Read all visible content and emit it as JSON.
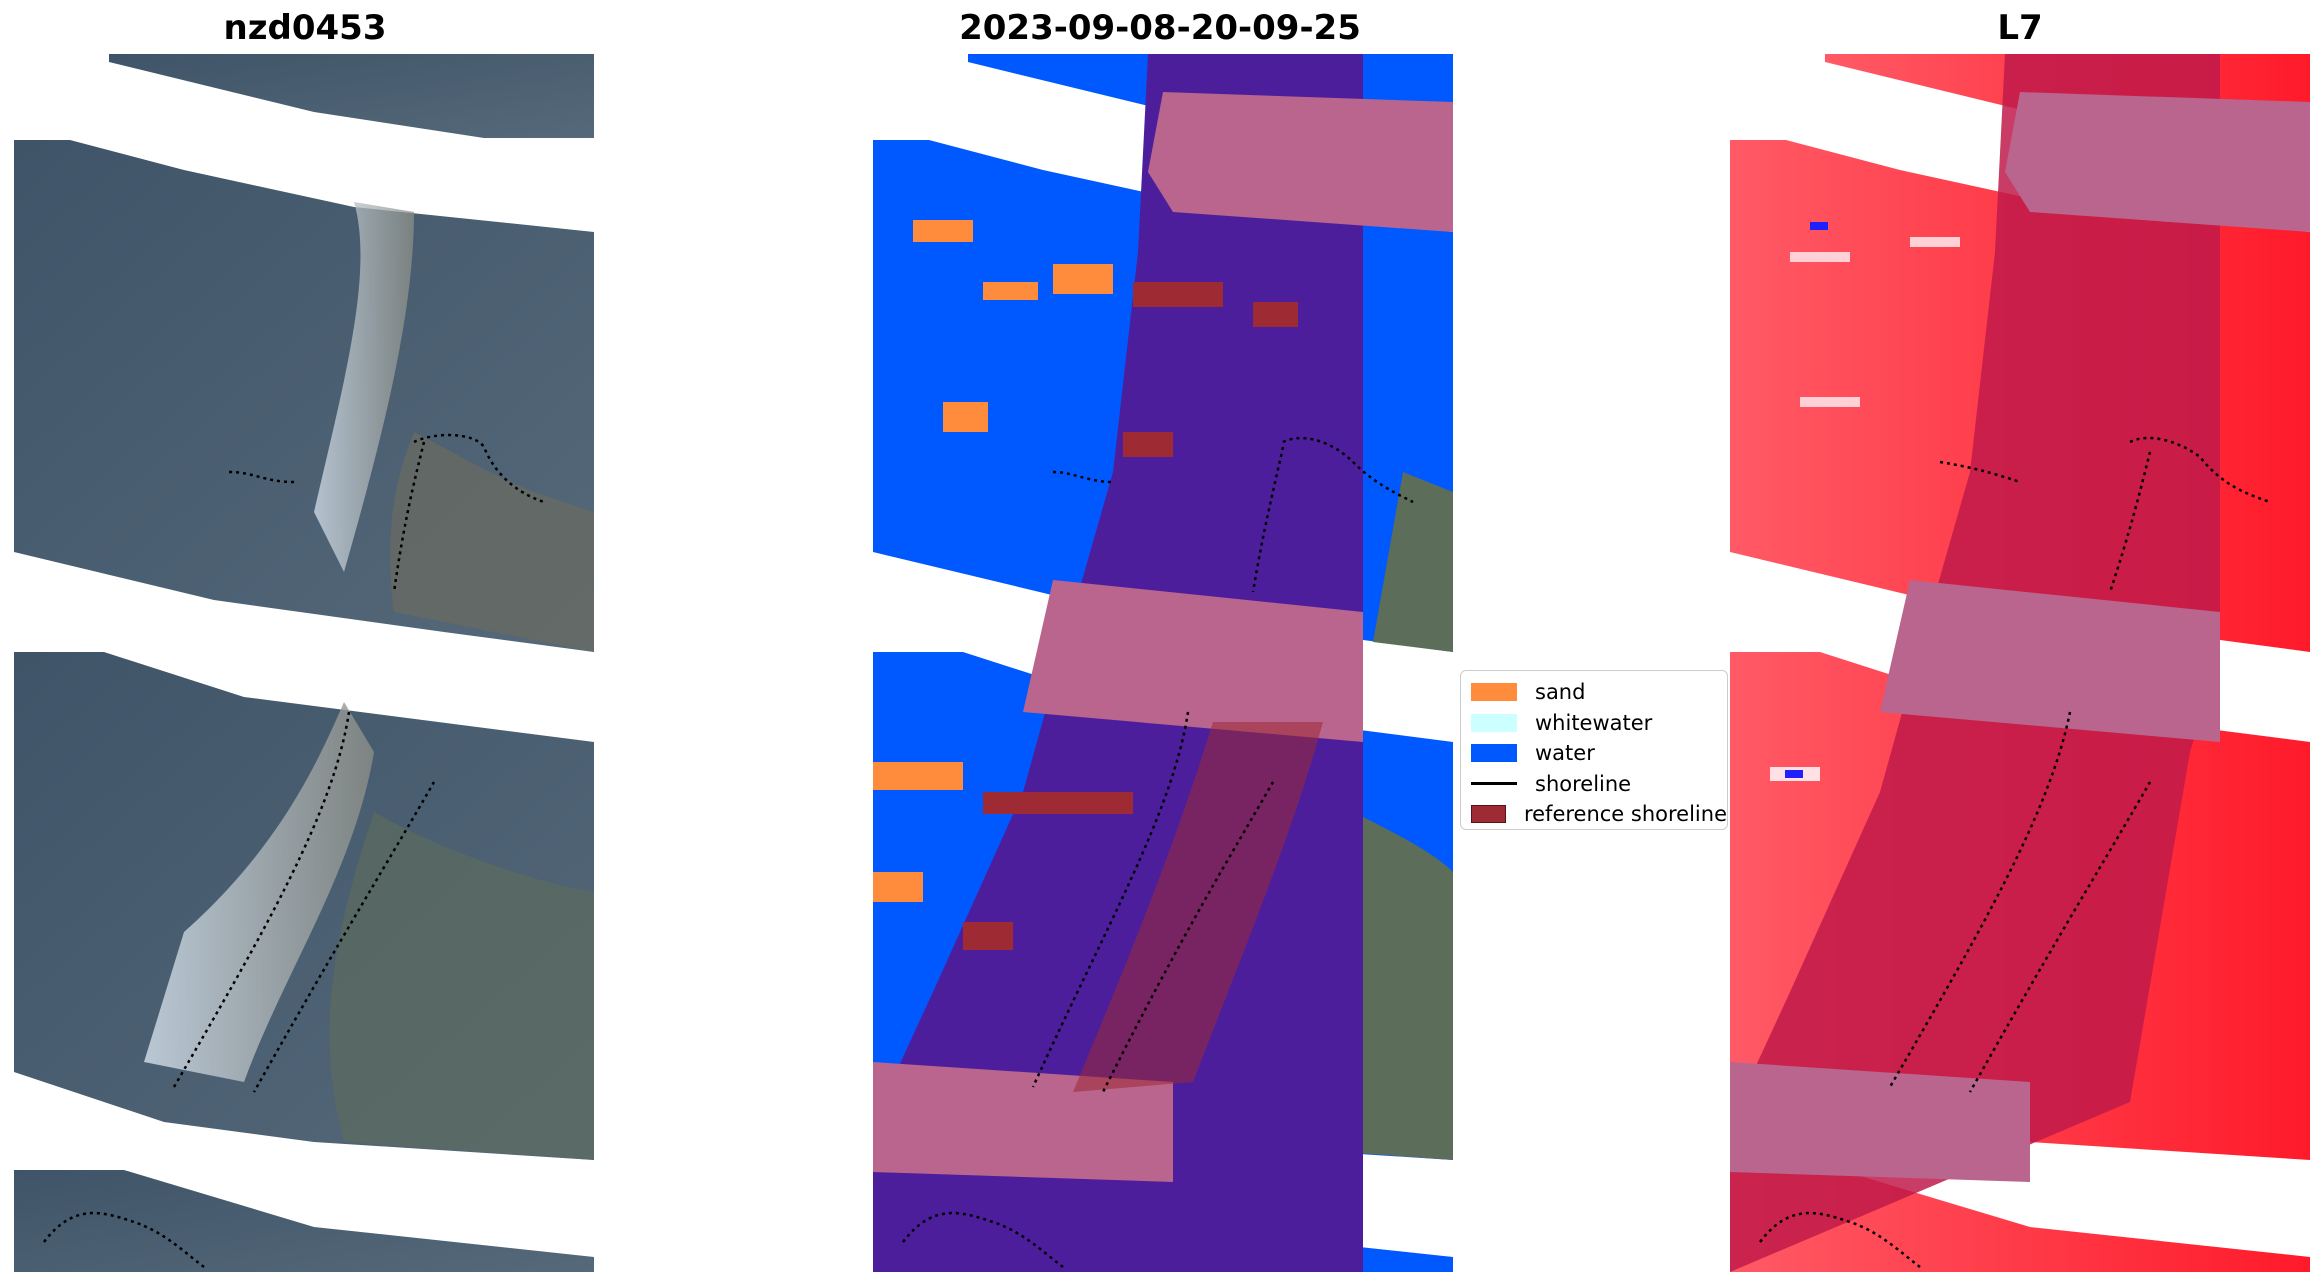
{
  "panels": [
    {
      "title": "nzd0453"
    },
    {
      "title": "2023-09-08-20-09-25"
    },
    {
      "title": "L7"
    }
  ],
  "legend": {
    "items": [
      {
        "label": "sand",
        "color": "#ff8c3c",
        "kind": "patch"
      },
      {
        "label": "whitewater",
        "color": "#ccffff",
        "kind": "patch"
      },
      {
        "label": "water",
        "color": "#0059ff",
        "kind": "patch"
      },
      {
        "label": "shoreline",
        "color": "#000000",
        "kind": "line"
      },
      {
        "label": "reference shoreline",
        "color": "#9e2a33",
        "kind": "patch"
      }
    ]
  },
  "colors": {
    "satellite_water": "#4a5f72",
    "land_green": "#5c6e5a",
    "cloud_band": "#b9658e",
    "class_overlay": "#4d1e9c",
    "index_red": "#ff3344",
    "index_dark": "#c01a4a"
  }
}
